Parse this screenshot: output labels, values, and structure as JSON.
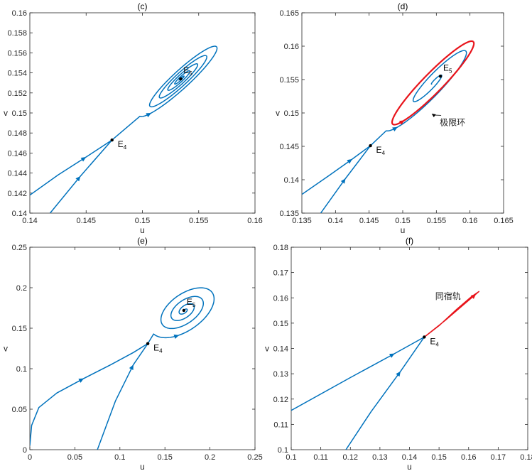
{
  "colors": {
    "traj": "#0072BD",
    "special": "#E8141B",
    "axis": "#262626",
    "point": "#000000"
  },
  "chart_data": [
    {
      "type": "line",
      "title": "(c)",
      "xlabel": "u",
      "ylabel": "v",
      "xlim": [
        0.14,
        0.16
      ],
      "ylim": [
        0.14,
        0.16
      ],
      "xticks": [
        "0.14",
        "0.145",
        "0.15",
        "0.155",
        "0.16"
      ],
      "yticks": [
        "0.14",
        "0.142",
        "0.144",
        "0.146",
        "0.148",
        "0.15",
        "0.152",
        "0.154",
        "0.156",
        "0.158",
        "0.16"
      ],
      "points": [
        {
          "label": "E",
          "sub": "4",
          "x": 0.1473,
          "y": 0.1473
        },
        {
          "label": "E",
          "sub": "5",
          "x": 0.1534,
          "y": 0.1534
        }
      ],
      "series": [
        {
          "name": "unstable-left",
          "color": "traj",
          "arrow": 0.5,
          "x": [
            0.14,
            0.1425,
            0.145,
            0.1473
          ],
          "y": [
            0.1418,
            0.1438,
            0.1456,
            0.1473
          ]
        },
        {
          "name": "stable-below",
          "color": "traj",
          "arrow": 0.55,
          "x": [
            0.1418,
            0.1445,
            0.1473
          ],
          "y": [
            0.14,
            0.1437,
            0.1473
          ]
        },
        {
          "name": "spiral",
          "color": "traj",
          "arrow": 0.02,
          "spiral": true,
          "center": [
            0.1534,
            0.1534
          ],
          "from": [
            0.1473,
            0.1473
          ],
          "turns": 5,
          "outer": 0.005,
          "tilt": 0.8,
          "ratio": 0.18
        }
      ]
    },
    {
      "type": "line",
      "title": "(d)",
      "xlabel": "u",
      "ylabel": "v",
      "xlim": [
        0.135,
        0.165
      ],
      "ylim": [
        0.135,
        0.165
      ],
      "xticks": [
        "0.135",
        "0.14",
        "0.145",
        "0.15",
        "0.155",
        "0.16",
        "0.165"
      ],
      "yticks": [
        "0.135",
        "0.14",
        "0.145",
        "0.15",
        "0.155",
        "0.16",
        "0.165"
      ],
      "points": [
        {
          "label": "E",
          "sub": "4",
          "x": 0.1452,
          "y": 0.1451
        },
        {
          "label": "E",
          "sub": "5",
          "x": 0.1556,
          "y": 0.1555
        }
      ],
      "annotations": [
        {
          "text": "极限环",
          "x": 0.1543,
          "y": 0.1499,
          "tx": 0.1555,
          "ty": 0.149
        }
      ],
      "series": [
        {
          "name": "unstable-left",
          "color": "traj",
          "arrow": 0.5,
          "x": [
            0.135,
            0.139,
            0.1425,
            0.1452
          ],
          "y": [
            0.1378,
            0.1406,
            0.1431,
            0.1451
          ]
        },
        {
          "name": "stable-below",
          "color": "traj",
          "arrow": 0.55,
          "x": [
            0.1378,
            0.1415,
            0.1452
          ],
          "y": [
            0.135,
            0.1402,
            0.1451
          ]
        },
        {
          "name": "outer-orbits",
          "color": "traj",
          "arrow": 0.04,
          "spiral": true,
          "center": [
            0.1545,
            0.1545
          ],
          "from": [
            0.1452,
            0.1451
          ],
          "turns": 2,
          "outer": 0.0098,
          "tilt": 0.8,
          "ratio": 0.19
        },
        {
          "name": "limit-cycle",
          "color": "special",
          "arrow": 0.6,
          "ellipse": true,
          "center": [
            0.1545,
            0.1545
          ],
          "a": 0.0086,
          "tilt": 0.8,
          "ratio": 0.17
        }
      ]
    },
    {
      "type": "line",
      "title": "(e)",
      "xlabel": "u",
      "ylabel": "v",
      "xlim": [
        0,
        0.25
      ],
      "ylim": [
        0,
        0.25
      ],
      "xticks": [
        "0",
        "0.05",
        "0.1",
        "0.15",
        "0.2",
        "0.25"
      ],
      "yticks": [
        "0",
        "0.05",
        "0.1",
        "0.15",
        "0.2",
        "0.25"
      ],
      "points": [
        {
          "label": "E",
          "sub": "4",
          "x": 0.131,
          "y": 0.131
        },
        {
          "label": "E",
          "sub": "5",
          "x": 0.171,
          "y": 0.172
        }
      ],
      "series": [
        {
          "name": "unstable-left",
          "color": "traj",
          "arrow": 0.5,
          "x": [
            0.0,
            0.002,
            0.01,
            0.03,
            0.06,
            0.09,
            0.115,
            0.131
          ],
          "y": [
            0.005,
            0.03,
            0.052,
            0.07,
            0.088,
            0.105,
            0.12,
            0.131
          ]
        },
        {
          "name": "stable-below",
          "color": "traj",
          "arrow": 0.7,
          "x": [
            0.075,
            0.095,
            0.115,
            0.131
          ],
          "y": [
            0.0,
            0.06,
            0.105,
            0.131
          ]
        },
        {
          "name": "spiral",
          "color": "traj",
          "arrow": 0.04,
          "spiral": true,
          "center": [
            0.172,
            0.172
          ],
          "from": [
            0.131,
            0.131
          ],
          "turns": 4,
          "outer": 0.045,
          "tilt": 0.7,
          "ratio": 0.55
        }
      ]
    },
    {
      "type": "line",
      "title": "(f)",
      "xlabel": "u",
      "ylabel": "v",
      "xlim": [
        0.1,
        0.18
      ],
      "ylim": [
        0.1,
        0.18
      ],
      "xticks": [
        "0.1",
        "0.11",
        "0.12",
        "0.13",
        "0.14",
        "0.15",
        "0.16",
        "0.17",
        "0.18"
      ],
      "yticks": [
        "0.1",
        "0.11",
        "0.12",
        "0.13",
        "0.14",
        "0.15",
        "0.16",
        "0.17",
        "0.18"
      ],
      "points": [
        {
          "label": "E",
          "sub": "4",
          "x": 0.145,
          "y": 0.1445
        }
      ],
      "annotations": [
        {
          "text": "同宿轨",
          "tx": 0.1487,
          "ty": 0.1595
        }
      ],
      "series": [
        {
          "name": "unstable-left",
          "color": "traj",
          "arrow": 0.65,
          "x": [
            0.1,
            0.12,
            0.135,
            0.145
          ],
          "y": [
            0.1155,
            0.1285,
            0.138,
            0.1445
          ]
        },
        {
          "name": "stable-below",
          "color": "traj",
          "arrow": 0.7,
          "x": [
            0.1185,
            0.127,
            0.137,
            0.145
          ],
          "y": [
            0.1,
            0.115,
            0.131,
            0.1445
          ]
        },
        {
          "name": "homoclinic-orbit",
          "color": "special",
          "arrow": 0.35,
          "loop": true,
          "x": [
            0.145,
            0.152,
            0.158,
            0.1625,
            0.1635,
            0.161,
            0.156,
            0.15,
            0.145
          ],
          "y": [
            0.1445,
            0.151,
            0.157,
            0.1615,
            0.1625,
            0.1605,
            0.1555,
            0.149,
            0.1445
          ]
        }
      ]
    }
  ]
}
